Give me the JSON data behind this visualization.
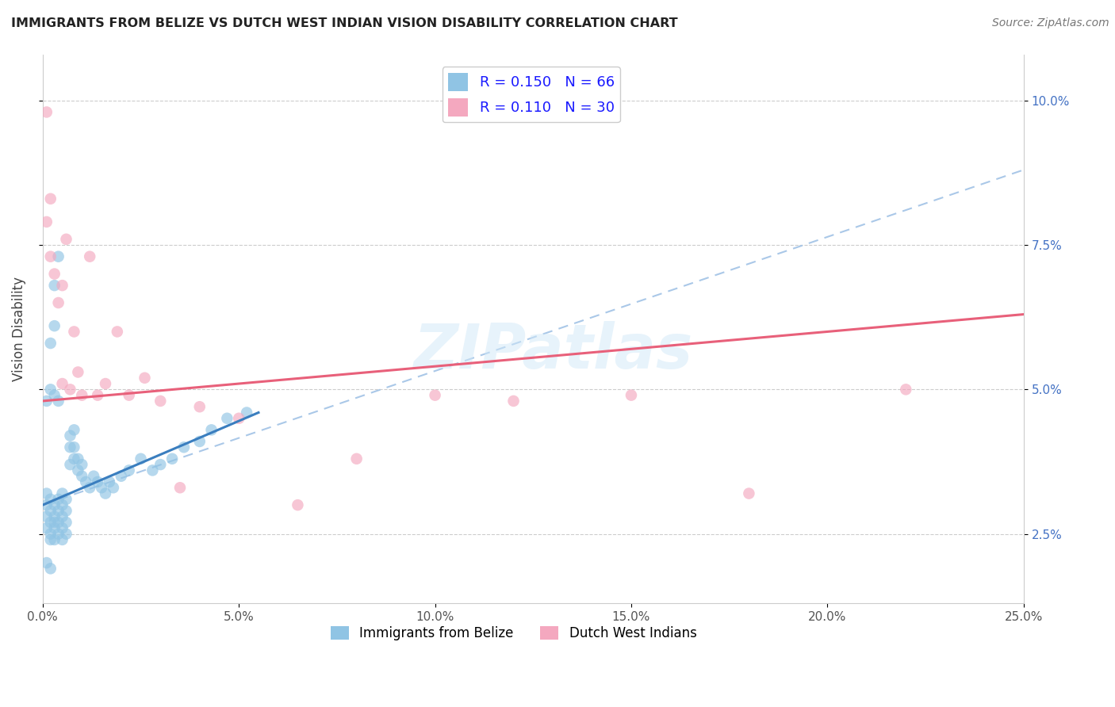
{
  "title": "IMMIGRANTS FROM BELIZE VS DUTCH WEST INDIAN VISION DISABILITY CORRELATION CHART",
  "source_text": "Source: ZipAtlas.com",
  "ylabel": "Vision Disability",
  "legend_label_1": "Immigrants from Belize",
  "legend_label_2": "Dutch West Indians",
  "R1": 0.15,
  "N1": 66,
  "R2": 0.11,
  "N2": 30,
  "color_blue": "#90c4e4",
  "color_pink": "#f4a8bf",
  "color_blue_line": "#3a7ebf",
  "color_pink_line": "#e8607a",
  "color_dashed": "#aac8e8",
  "xlim": [
    0.0,
    0.25
  ],
  "ylim": [
    0.013,
    0.108
  ],
  "xticks": [
    0.0,
    0.05,
    0.1,
    0.15,
    0.2,
    0.25
  ],
  "yticks_right": [
    0.025,
    0.05,
    0.075,
    0.1
  ],
  "ytick_labels_right": [
    "2.5%",
    "5.0%",
    "7.5%",
    "10.0%"
  ],
  "xtick_labels": [
    "0.0%",
    "5.0%",
    "10.0%",
    "15.0%",
    "20.0%",
    "25.0%"
  ],
  "background_color": "#ffffff",
  "watermark_text": "ZIPatlas",
  "blue_x": [
    0.001,
    0.001,
    0.001,
    0.001,
    0.002,
    0.002,
    0.002,
    0.002,
    0.002,
    0.003,
    0.003,
    0.003,
    0.003,
    0.003,
    0.004,
    0.004,
    0.004,
    0.004,
    0.005,
    0.005,
    0.005,
    0.005,
    0.005,
    0.006,
    0.006,
    0.006,
    0.006,
    0.007,
    0.007,
    0.007,
    0.008,
    0.008,
    0.008,
    0.009,
    0.009,
    0.01,
    0.01,
    0.011,
    0.012,
    0.013,
    0.014,
    0.015,
    0.016,
    0.017,
    0.018,
    0.02,
    0.022,
    0.025,
    0.028,
    0.03,
    0.033,
    0.036,
    0.04,
    0.043,
    0.047,
    0.052,
    0.001,
    0.002,
    0.003,
    0.004,
    0.002,
    0.003,
    0.003,
    0.004,
    0.001,
    0.002
  ],
  "blue_y": [
    0.03,
    0.028,
    0.026,
    0.032,
    0.027,
    0.029,
    0.031,
    0.025,
    0.024,
    0.027,
    0.03,
    0.024,
    0.026,
    0.028,
    0.025,
    0.027,
    0.029,
    0.031,
    0.024,
    0.026,
    0.028,
    0.03,
    0.032,
    0.025,
    0.027,
    0.029,
    0.031,
    0.04,
    0.042,
    0.037,
    0.038,
    0.04,
    0.043,
    0.036,
    0.038,
    0.035,
    0.037,
    0.034,
    0.033,
    0.035,
    0.034,
    0.033,
    0.032,
    0.034,
    0.033,
    0.035,
    0.036,
    0.038,
    0.036,
    0.037,
    0.038,
    0.04,
    0.041,
    0.043,
    0.045,
    0.046,
    0.048,
    0.05,
    0.049,
    0.048,
    0.058,
    0.061,
    0.068,
    0.073,
    0.02,
    0.019
  ],
  "pink_x": [
    0.001,
    0.001,
    0.002,
    0.002,
    0.003,
    0.004,
    0.005,
    0.005,
    0.006,
    0.007,
    0.008,
    0.009,
    0.01,
    0.012,
    0.014,
    0.016,
    0.019,
    0.022,
    0.026,
    0.03,
    0.035,
    0.04,
    0.05,
    0.065,
    0.08,
    0.1,
    0.12,
    0.15,
    0.18,
    0.22
  ],
  "pink_y": [
    0.098,
    0.079,
    0.073,
    0.083,
    0.07,
    0.065,
    0.051,
    0.068,
    0.076,
    0.05,
    0.06,
    0.053,
    0.049,
    0.073,
    0.049,
    0.051,
    0.06,
    0.049,
    0.052,
    0.048,
    0.033,
    0.047,
    0.045,
    0.03,
    0.038,
    0.049,
    0.048,
    0.049,
    0.032,
    0.05
  ],
  "blue_trend_x": [
    0.0,
    0.055
  ],
  "blue_trend_y": [
    0.03,
    0.046
  ],
  "pink_trend_x": [
    0.0,
    0.25
  ],
  "pink_trend_y": [
    0.048,
    0.063
  ],
  "dashed_trend_x": [
    0.0,
    0.25
  ],
  "dashed_trend_y": [
    0.03,
    0.088
  ]
}
